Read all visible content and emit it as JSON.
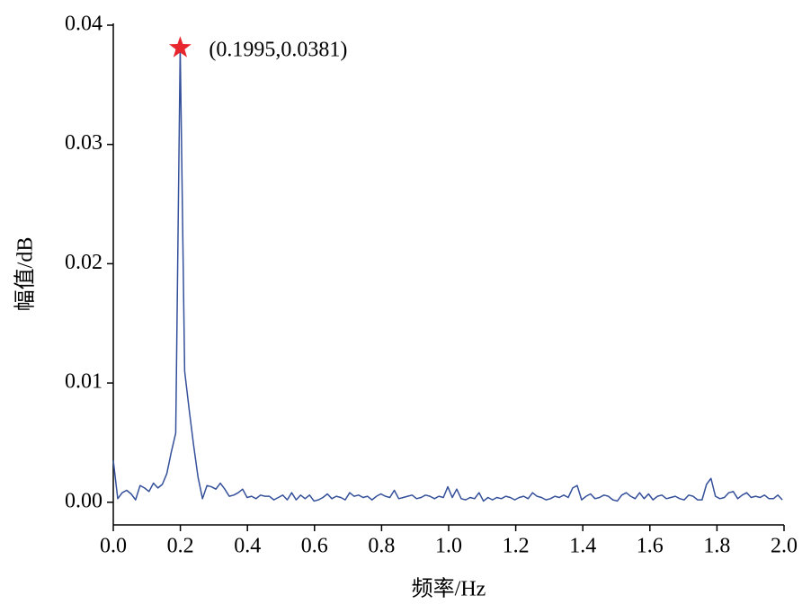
{
  "chart_data": {
    "type": "line",
    "xlabel": "频率/Hz",
    "ylabel": "幅值/dB",
    "x": [
      0,
      0.0133,
      0.0266,
      0.0399,
      0.0532,
      0.0665,
      0.0798,
      0.0931,
      0.1064,
      0.1197,
      0.133,
      0.1463,
      0.1596,
      0.1729,
      0.1862,
      0.1995,
      0.2128,
      0.2261,
      0.2394,
      0.2527,
      0.266,
      0.2793,
      0.2926,
      0.3059,
      0.3192,
      0.3325,
      0.3458,
      0.3591,
      0.3724,
      0.3857,
      0.399,
      0.4123,
      0.4256,
      0.4389,
      0.4522,
      0.4655,
      0.4788,
      0.4921,
      0.5054,
      0.5187,
      0.532,
      0.5453,
      0.5586,
      0.5719,
      0.5852,
      0.5985,
      0.6118,
      0.6251,
      0.6384,
      0.6517,
      0.665,
      0.6783,
      0.6916,
      0.7049,
      0.7182,
      0.7315,
      0.7448,
      0.7581,
      0.7714,
      0.7847,
      0.798,
      0.8113,
      0.8246,
      0.8379,
      0.8512,
      0.8645,
      0.8778,
      0.8911,
      0.9044,
      0.9177,
      0.931,
      0.9443,
      0.9576,
      0.9709,
      0.9842,
      0.9975,
      1.0108,
      1.0241,
      1.0374,
      1.0507,
      1.064,
      1.0773,
      1.0906,
      1.1039,
      1.1172,
      1.1305,
      1.1438,
      1.1571,
      1.1704,
      1.1837,
      1.197,
      1.2103,
      1.2236,
      1.2369,
      1.2502,
      1.2635,
      1.2768,
      1.2901,
      1.3034,
      1.3167,
      1.33,
      1.3433,
      1.3566,
      1.3699,
      1.3832,
      1.3965,
      1.4098,
      1.4231,
      1.4364,
      1.4497,
      1.463,
      1.4763,
      1.4896,
      1.5029,
      1.5162,
      1.5295,
      1.5428,
      1.5561,
      1.5694,
      1.5827,
      1.596,
      1.6093,
      1.6226,
      1.6359,
      1.6492,
      1.6625,
      1.6758,
      1.6891,
      1.7024,
      1.7157,
      1.729,
      1.7423,
      1.7556,
      1.7689,
      1.7822,
      1.7955,
      1.8088,
      1.8221,
      1.8354,
      1.8487,
      1.862,
      1.8753,
      1.8886,
      1.9019,
      1.9152,
      1.9285,
      1.9418,
      1.9551,
      1.9684,
      1.9817,
      1.995
    ],
    "series": [
      {
        "color": "#34509a",
        "values": [
          0.0035,
          0.0003,
          0.0008,
          0.001,
          0.0007,
          0.0002,
          0.0014,
          0.0012,
          0.0009,
          0.0016,
          0.0012,
          0.0015,
          0.0024,
          0.0042,
          0.0058,
          0.0381,
          0.011,
          0.0078,
          0.0048,
          0.0021,
          0.0003,
          0.0014,
          0.0013,
          0.0011,
          0.0016,
          0.0011,
          0.0005,
          0.0006,
          0.0008,
          0.0011,
          0.0004,
          0.0005,
          0.0003,
          0.0006,
          0.0005,
          0.0005,
          0.0002,
          0.0004,
          0.0006,
          0.0002,
          0.0008,
          0.0002,
          0.0006,
          0.0003,
          0.0006,
          0.0001,
          0.0002,
          0.0004,
          0.0007,
          0.0003,
          0.0005,
          0.0004,
          0.0002,
          0.0008,
          0.0005,
          0.0006,
          0.0004,
          0.0005,
          0.0002,
          0.0005,
          0.0007,
          0.0005,
          0.0004,
          0.001,
          0.0003,
          0.0004,
          0.0005,
          0.0006,
          0.0003,
          0.0004,
          0.0006,
          0.0005,
          0.0003,
          0.0005,
          0.0004,
          0.0013,
          0.0004,
          0.0011,
          0.0003,
          0.0002,
          0.0004,
          0.0003,
          0.0008,
          0.0001,
          0.0004,
          0.0002,
          0.0004,
          0.0003,
          0.0005,
          0.0004,
          0.0002,
          0.0004,
          0.0005,
          0.0003,
          0.0008,
          0.0005,
          0.0004,
          0.0002,
          0.0003,
          0.0005,
          0.0004,
          0.0006,
          0.0004,
          0.0012,
          0.0014,
          0.0002,
          0.0005,
          0.0007,
          0.0003,
          0.0004,
          0.0006,
          0.0005,
          0.0002,
          0.0001,
          0.0006,
          0.0008,
          0.0005,
          0.0003,
          0.0008,
          0.0003,
          0.0007,
          0.0002,
          0.0005,
          0.0006,
          0.0003,
          0.0004,
          0.0005,
          0.0003,
          0.0002,
          0.0006,
          0.0005,
          0.0002,
          0.0002,
          0.0015,
          0.002,
          0.0005,
          0.0003,
          0.0004,
          0.0008,
          0.0009,
          0.0003,
          0.0006,
          0.0008,
          0.0004,
          0.0005,
          0.0004,
          0.0006,
          0.0003,
          0.0003,
          0.0006,
          0.0002
        ]
      }
    ],
    "annotation": {
      "x": 0.1995,
      "y": 0.0381,
      "label": "(0.1995,0.0381)",
      "color": "#e8262e"
    },
    "xlim": [
      0,
      2.0
    ],
    "xticks": [
      {
        "value": 0,
        "label": "0.0"
      },
      {
        "value": 0.2,
        "label": "0.2"
      },
      {
        "value": 0.4,
        "label": "0.4"
      },
      {
        "value": 0.6,
        "label": "0.6"
      },
      {
        "value": 0.8,
        "label": "0.8"
      },
      {
        "value": 1.0,
        "label": "1.0"
      },
      {
        "value": 1.2,
        "label": "1.2"
      },
      {
        "value": 1.4,
        "label": "1.4"
      },
      {
        "value": 1.6,
        "label": "1.6"
      },
      {
        "value": 1.8,
        "label": "1.8"
      },
      {
        "value": 2.0,
        "label": "2.0"
      }
    ],
    "ylim": [
      -0.0019,
      0.04
    ],
    "yticks": [
      {
        "value": 0,
        "label": "0.00"
      },
      {
        "value": 0.01,
        "label": "0.01"
      },
      {
        "value": 0.02,
        "label": "0.02"
      },
      {
        "value": 0.03,
        "label": "0.03"
      },
      {
        "value": 0.04,
        "label": "0.04"
      }
    ]
  }
}
